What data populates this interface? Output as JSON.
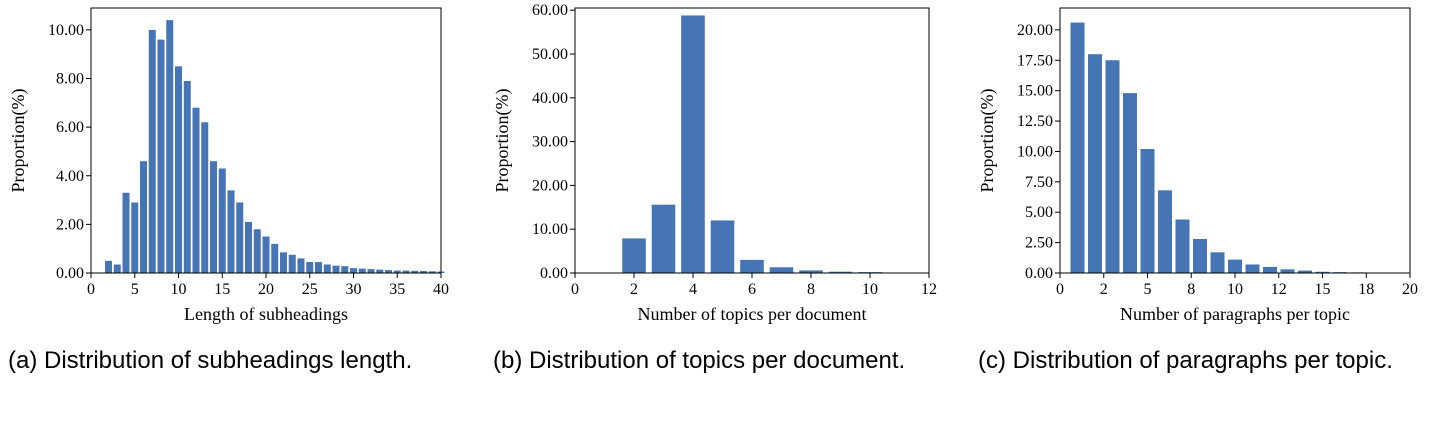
{
  "chart_data": [
    {
      "type": "bar",
      "caption": "(a) Distribution of subheadings length.",
      "xlabel": "Length of subheadings",
      "ylabel": "Proportion(%)",
      "xlim": [
        0,
        40
      ],
      "ylim": [
        0,
        10.9
      ],
      "xticks": [
        0,
        5,
        10,
        15,
        20,
        25,
        30,
        35,
        40
      ],
      "yticks": [
        0,
        2,
        4,
        6,
        8,
        10
      ],
      "ytick_labels": [
        "0.00",
        "2.00",
        "4.00",
        "6.00",
        "8.00",
        "10.00"
      ],
      "color": "#4575b4",
      "x": [
        2,
        3,
        4,
        5,
        6,
        7,
        8,
        9,
        10,
        11,
        12,
        13,
        14,
        15,
        16,
        17,
        18,
        19,
        20,
        21,
        22,
        23,
        24,
        25,
        26,
        27,
        28,
        29,
        30,
        31,
        32,
        33,
        34,
        35,
        36,
        37,
        38,
        39,
        40
      ],
      "values": [
        0.5,
        0.35,
        3.3,
        2.9,
        4.6,
        10.0,
        9.6,
        10.4,
        8.5,
        7.9,
        6.8,
        6.2,
        4.6,
        4.3,
        3.4,
        2.9,
        2.1,
        1.8,
        1.5,
        1.2,
        0.85,
        0.75,
        0.6,
        0.45,
        0.45,
        0.35,
        0.3,
        0.28,
        0.2,
        0.18,
        0.16,
        0.14,
        0.12,
        0.1,
        0.1,
        0.09,
        0.08,
        0.07,
        0.06
      ]
    },
    {
      "type": "bar",
      "caption": "(b) Distribution of topics per document.",
      "xlabel": "Number of topics per document",
      "ylabel": "Proportion(%)",
      "xlim": [
        0,
        12
      ],
      "ylim": [
        0,
        60.5
      ],
      "xticks": [
        0,
        2,
        4,
        6,
        8,
        10,
        12
      ],
      "yticks": [
        0,
        10,
        20,
        30,
        40,
        50,
        60
      ],
      "ytick_labels": [
        "0.00",
        "10.00",
        "20.00",
        "30.00",
        "40.00",
        "50.00",
        "60.00"
      ],
      "color": "#4575b4",
      "x": [
        2,
        3,
        4,
        5,
        6,
        7,
        8,
        9,
        10,
        11
      ],
      "values": [
        7.9,
        15.6,
        58.8,
        12.0,
        3.0,
        1.3,
        0.6,
        0.3,
        0.2,
        0.1
      ]
    },
    {
      "type": "bar",
      "caption": "(c) Distribution of paragraphs per topic.",
      "xlabel": "Number of paragraphs per topic",
      "ylabel": "Proportion(%)",
      "xlim": [
        0,
        20
      ],
      "ylim": [
        0,
        21.8
      ],
      "xticks": [
        0,
        2.5,
        5,
        7.5,
        10,
        12.5,
        15,
        17.5,
        20
      ],
      "xtick_labels": [
        "0",
        "2",
        "5",
        "8",
        "10",
        "12",
        "15",
        "18",
        "20"
      ],
      "yticks": [
        0,
        2.5,
        5,
        7.5,
        10,
        12.5,
        15,
        17.5,
        20
      ],
      "ytick_labels": [
        "0.00",
        "2.50",
        "5.00",
        "7.50",
        "10.00",
        "12.50",
        "15.00",
        "17.50",
        "20.00"
      ],
      "color": "#4575b4",
      "x": [
        1,
        2,
        3,
        4,
        5,
        6,
        7,
        8,
        9,
        10,
        11,
        12,
        13,
        14,
        15,
        16,
        17
      ],
      "values": [
        20.6,
        18.0,
        17.5,
        14.8,
        10.2,
        6.8,
        4.4,
        2.8,
        1.7,
        1.1,
        0.7,
        0.5,
        0.3,
        0.2,
        0.1,
        0.07,
        0.05
      ]
    }
  ]
}
